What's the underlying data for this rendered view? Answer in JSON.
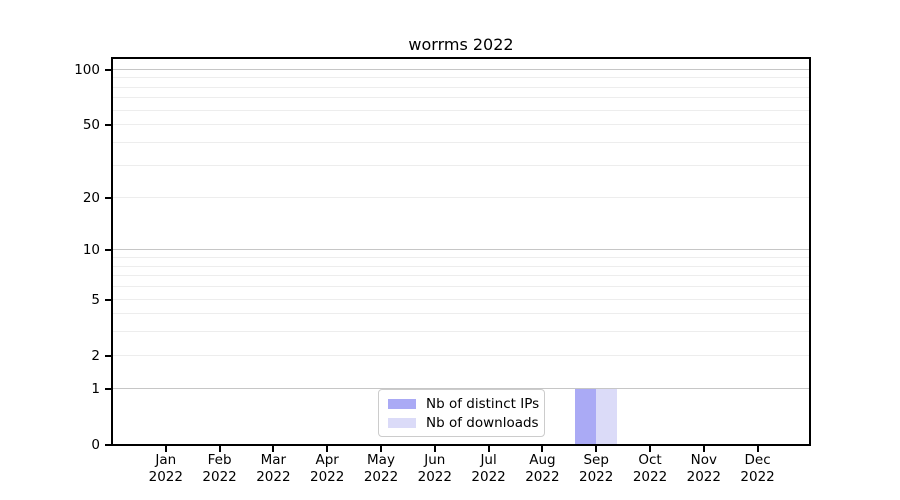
{
  "title": "worrms 2022",
  "legend": {
    "items": [
      {
        "label": "Nb of distinct IPs",
        "color": "#aaaaf5"
      },
      {
        "label": "Nb of downloads",
        "color": "#dbdbf8"
      }
    ]
  },
  "chart_data": {
    "type": "bar",
    "title": "worrms 2022",
    "categories": [
      "Jan",
      "Feb",
      "Mar",
      "Apr",
      "May",
      "Jun",
      "Jul",
      "Aug",
      "Sep",
      "Oct",
      "Nov",
      "Dec"
    ],
    "x_year_label": "2022",
    "series": [
      {
        "name": "Nb of distinct IPs",
        "color": "#aaaaf5",
        "values": [
          0,
          0,
          0,
          0,
          0,
          0,
          0,
          0,
          1,
          0,
          0,
          0
        ]
      },
      {
        "name": "Nb of downloads",
        "color": "#dbdbf8",
        "values": [
          0,
          0,
          0,
          0,
          0,
          0,
          0,
          0,
          1,
          0,
          0,
          0
        ]
      }
    ],
    "y_axis": {
      "scale": "symlog-like (linear 0-1, log above)",
      "ticks": [
        0,
        1,
        2,
        5,
        10,
        20,
        50,
        100
      ],
      "major_gridlines": [
        1,
        10,
        100
      ],
      "minor_gridlines": [
        2,
        3,
        4,
        5,
        6,
        7,
        8,
        9,
        20,
        30,
        40,
        50,
        60,
        70,
        80,
        90
      ],
      "range_top_value": 120
    },
    "grid": "horizontal only",
    "legend_position": "inside bottom, left of Sep bars"
  },
  "colors": {
    "background": "#ffffff",
    "axis": "#000000",
    "major_grid": "#c6c6c6",
    "minor_grid": "#ededed",
    "bar_distinct_ips": "#aaaaf5",
    "bar_downloads": "#dbdbf8",
    "legend_border": "#cccccc"
  }
}
